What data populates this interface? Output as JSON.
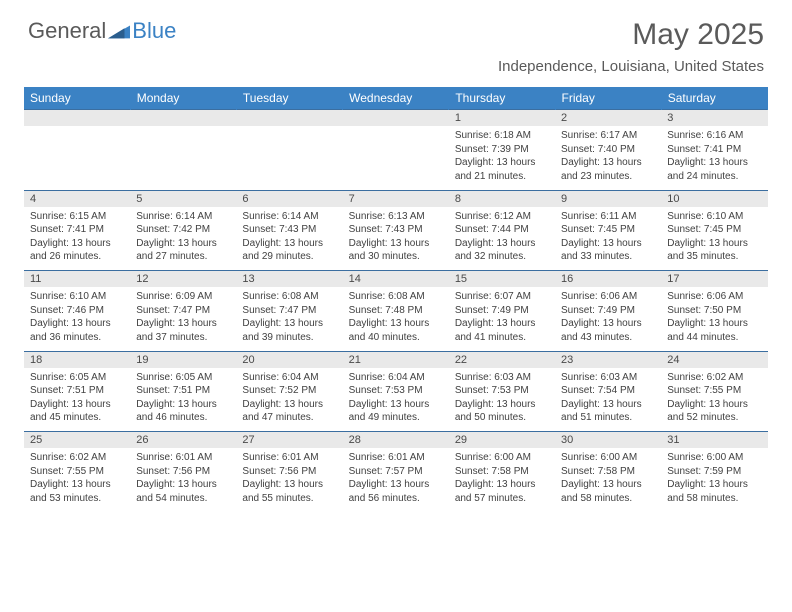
{
  "brand": {
    "part1": "General",
    "part2": "Blue"
  },
  "title": "May 2025",
  "location": "Independence, Louisiana, United States",
  "day_headers": [
    "Sunday",
    "Monday",
    "Tuesday",
    "Wednesday",
    "Thursday",
    "Friday",
    "Saturday"
  ],
  "colors": {
    "header_bg": "#3b82c4",
    "header_fg": "#ffffff",
    "rule": "#3b6ea0",
    "daynum_bg": "#e9e9e9",
    "text": "#414141",
    "title_gray": "#5a5a5a"
  },
  "font": {
    "title_size_pt": 22,
    "location_size_pt": 11,
    "header_size_pt": 9,
    "body_size_pt": 7.5
  },
  "weeks": [
    [
      null,
      null,
      null,
      null,
      {
        "n": "1",
        "sr": "6:18 AM",
        "ss": "7:39 PM",
        "dl": "13 hours and 21 minutes."
      },
      {
        "n": "2",
        "sr": "6:17 AM",
        "ss": "7:40 PM",
        "dl": "13 hours and 23 minutes."
      },
      {
        "n": "3",
        "sr": "6:16 AM",
        "ss": "7:41 PM",
        "dl": "13 hours and 24 minutes."
      }
    ],
    [
      {
        "n": "4",
        "sr": "6:15 AM",
        "ss": "7:41 PM",
        "dl": "13 hours and 26 minutes."
      },
      {
        "n": "5",
        "sr": "6:14 AM",
        "ss": "7:42 PM",
        "dl": "13 hours and 27 minutes."
      },
      {
        "n": "6",
        "sr": "6:14 AM",
        "ss": "7:43 PM",
        "dl": "13 hours and 29 minutes."
      },
      {
        "n": "7",
        "sr": "6:13 AM",
        "ss": "7:43 PM",
        "dl": "13 hours and 30 minutes."
      },
      {
        "n": "8",
        "sr": "6:12 AM",
        "ss": "7:44 PM",
        "dl": "13 hours and 32 minutes."
      },
      {
        "n": "9",
        "sr": "6:11 AM",
        "ss": "7:45 PM",
        "dl": "13 hours and 33 minutes."
      },
      {
        "n": "10",
        "sr": "6:10 AM",
        "ss": "7:45 PM",
        "dl": "13 hours and 35 minutes."
      }
    ],
    [
      {
        "n": "11",
        "sr": "6:10 AM",
        "ss": "7:46 PM",
        "dl": "13 hours and 36 minutes."
      },
      {
        "n": "12",
        "sr": "6:09 AM",
        "ss": "7:47 PM",
        "dl": "13 hours and 37 minutes."
      },
      {
        "n": "13",
        "sr": "6:08 AM",
        "ss": "7:47 PM",
        "dl": "13 hours and 39 minutes."
      },
      {
        "n": "14",
        "sr": "6:08 AM",
        "ss": "7:48 PM",
        "dl": "13 hours and 40 minutes."
      },
      {
        "n": "15",
        "sr": "6:07 AM",
        "ss": "7:49 PM",
        "dl": "13 hours and 41 minutes."
      },
      {
        "n": "16",
        "sr": "6:06 AM",
        "ss": "7:49 PM",
        "dl": "13 hours and 43 minutes."
      },
      {
        "n": "17",
        "sr": "6:06 AM",
        "ss": "7:50 PM",
        "dl": "13 hours and 44 minutes."
      }
    ],
    [
      {
        "n": "18",
        "sr": "6:05 AM",
        "ss": "7:51 PM",
        "dl": "13 hours and 45 minutes."
      },
      {
        "n": "19",
        "sr": "6:05 AM",
        "ss": "7:51 PM",
        "dl": "13 hours and 46 minutes."
      },
      {
        "n": "20",
        "sr": "6:04 AM",
        "ss": "7:52 PM",
        "dl": "13 hours and 47 minutes."
      },
      {
        "n": "21",
        "sr": "6:04 AM",
        "ss": "7:53 PM",
        "dl": "13 hours and 49 minutes."
      },
      {
        "n": "22",
        "sr": "6:03 AM",
        "ss": "7:53 PM",
        "dl": "13 hours and 50 minutes."
      },
      {
        "n": "23",
        "sr": "6:03 AM",
        "ss": "7:54 PM",
        "dl": "13 hours and 51 minutes."
      },
      {
        "n": "24",
        "sr": "6:02 AM",
        "ss": "7:55 PM",
        "dl": "13 hours and 52 minutes."
      }
    ],
    [
      {
        "n": "25",
        "sr": "6:02 AM",
        "ss": "7:55 PM",
        "dl": "13 hours and 53 minutes."
      },
      {
        "n": "26",
        "sr": "6:01 AM",
        "ss": "7:56 PM",
        "dl": "13 hours and 54 minutes."
      },
      {
        "n": "27",
        "sr": "6:01 AM",
        "ss": "7:56 PM",
        "dl": "13 hours and 55 minutes."
      },
      {
        "n": "28",
        "sr": "6:01 AM",
        "ss": "7:57 PM",
        "dl": "13 hours and 56 minutes."
      },
      {
        "n": "29",
        "sr": "6:00 AM",
        "ss": "7:58 PM",
        "dl": "13 hours and 57 minutes."
      },
      {
        "n": "30",
        "sr": "6:00 AM",
        "ss": "7:58 PM",
        "dl": "13 hours and 58 minutes."
      },
      {
        "n": "31",
        "sr": "6:00 AM",
        "ss": "7:59 PM",
        "dl": "13 hours and 58 minutes."
      }
    ]
  ],
  "labels": {
    "sunrise": "Sunrise:",
    "sunset": "Sunset:",
    "daylight": "Daylight:"
  }
}
